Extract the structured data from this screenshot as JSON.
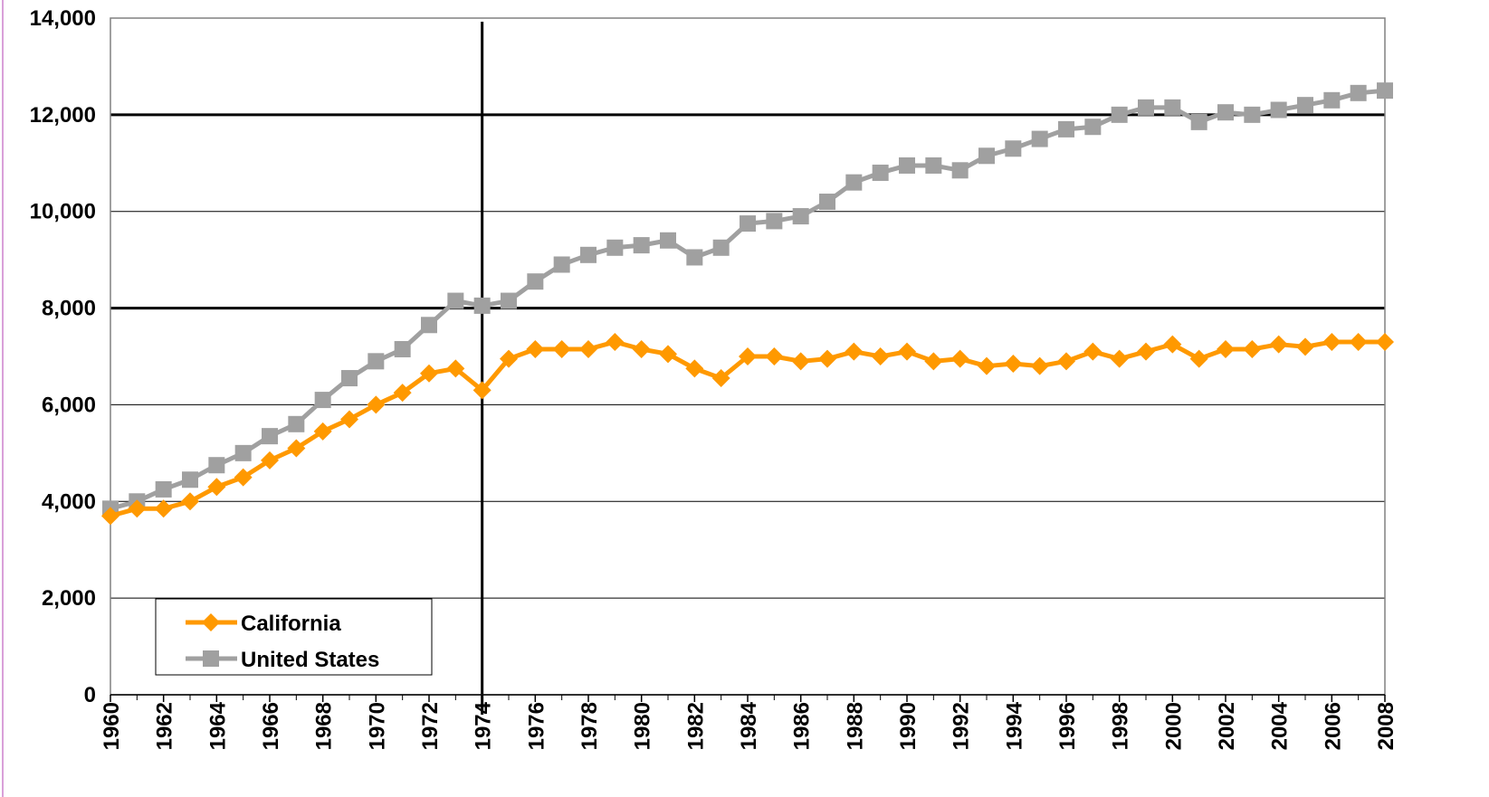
{
  "chart_data": {
    "type": "line",
    "x": [
      1960,
      1961,
      1962,
      1963,
      1964,
      1965,
      1966,
      1967,
      1968,
      1969,
      1970,
      1971,
      1972,
      1973,
      1974,
      1975,
      1976,
      1977,
      1978,
      1979,
      1980,
      1981,
      1982,
      1983,
      1984,
      1985,
      1986,
      1987,
      1988,
      1989,
      1990,
      1991,
      1992,
      1993,
      1994,
      1995,
      1996,
      1997,
      1998,
      1999,
      2000,
      2001,
      2002,
      2003,
      2004,
      2005,
      2006,
      2007,
      2008
    ],
    "series": [
      {
        "name": "California",
        "color": "#ff9900",
        "marker": "diamond",
        "values": [
          3700,
          3850,
          3850,
          4000,
          4300,
          4500,
          4850,
          5100,
          5450,
          5700,
          6000,
          6250,
          6650,
          6750,
          6300,
          6950,
          7150,
          7150,
          7150,
          7300,
          7150,
          7050,
          6750,
          6550,
          7000,
          7000,
          6900,
          6950,
          7100,
          7000,
          7100,
          6900,
          6950,
          6800,
          6850,
          6800,
          6900,
          7100,
          6950,
          7100,
          7250,
          6950,
          7150,
          7150,
          7250,
          7200,
          7300,
          7300,
          7300
        ]
      },
      {
        "name": "United States",
        "color": "#a0a0a0",
        "marker": "square",
        "values": [
          3850,
          4000,
          4250,
          4450,
          4750,
          5000,
          5350,
          5600,
          6100,
          6550,
          6900,
          7150,
          7650,
          8150,
          8050,
          8150,
          8550,
          8900,
          9100,
          9250,
          9300,
          9400,
          9050,
          9250,
          9750,
          9800,
          9900,
          10200,
          10600,
          10800,
          10950,
          10950,
          10850,
          11150,
          11300,
          11500,
          11700,
          11750,
          12000,
          12150,
          12150,
          11850,
          12050,
          12000,
          12100,
          12200,
          12300,
          12450,
          12500
        ]
      }
    ],
    "xlim": [
      1960,
      2008
    ],
    "xticks": [
      1960,
      1962,
      1964,
      1966,
      1968,
      1970,
      1972,
      1974,
      1976,
      1978,
      1980,
      1982,
      1984,
      1986,
      1988,
      1990,
      1992,
      1994,
      1996,
      1998,
      2000,
      2002,
      2004,
      2006,
      2008
    ],
    "ylim": [
      0,
      14000
    ],
    "yticks": [
      0,
      {
        "value": 2000,
        "label": "2,000"
      },
      {
        "value": 4000,
        "label": "4,000"
      },
      {
        "value": 6000,
        "label": "6,000"
      },
      {
        "value": 8000,
        "label": "8,000"
      },
      {
        "value": 10000,
        "label": "10,000"
      },
      {
        "value": 12000,
        "label": "12,000"
      },
      {
        "value": 14000,
        "label": "14,000"
      }
    ],
    "grid": true,
    "reference_hlines": [
      8000,
      12000
    ],
    "reference_vlines": [
      1974
    ],
    "legend": "bottom-left"
  }
}
